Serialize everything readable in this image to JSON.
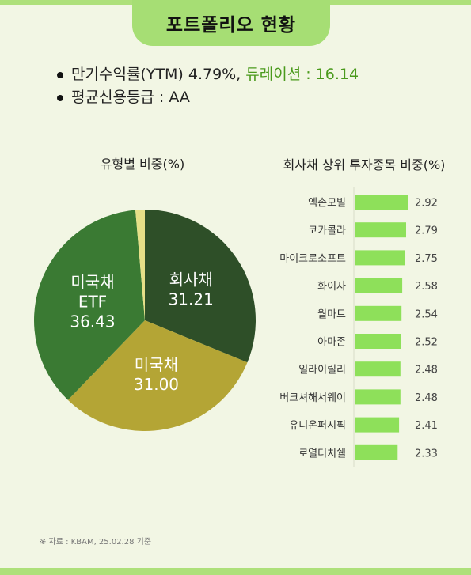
{
  "header": {
    "title": "포트폴리오 현황"
  },
  "summary": {
    "line1_main": "만기수익률(YTM) 4.79%,",
    "line1_accent": "듀레이션 : 16.14",
    "line2": "평균신용등급 : AA"
  },
  "colors": {
    "accent": "#a6de74",
    "bar": "#8ee05a",
    "highlight": "#4a9a1c"
  },
  "chart_data": [
    {
      "type": "pie",
      "title": "유형별 비중(%)",
      "slices": [
        {
          "name": "회사채",
          "value": 31.21,
          "color": "#2e4f28",
          "label_color": "#ffffff"
        },
        {
          "name": "미국채",
          "value": 31.0,
          "color": "#b4a535",
          "label_color": "#ffffff"
        },
        {
          "name": "미국채 ETF",
          "label_lines": [
            "미국채",
            "ETF"
          ],
          "value": 36.43,
          "color": "#3a7a33",
          "label_color": "#ffffff"
        },
        {
          "name": "",
          "value": 1.36,
          "color": "#e6df88",
          "label_color": "#ffffff"
        }
      ]
    },
    {
      "type": "bar",
      "orientation": "horizontal",
      "title": "회사채 상위 투자종목 비중(%)",
      "categories": [
        "엑손모빌",
        "코카콜라",
        "마이크로소프트",
        "화이자",
        "월마트",
        "아마존",
        "일라이릴리",
        "버크셔해서웨이",
        "유니온퍼시픽",
        "로열더치쉘"
      ],
      "values": [
        2.92,
        2.79,
        2.75,
        2.58,
        2.54,
        2.52,
        2.48,
        2.48,
        2.41,
        2.33
      ]
    }
  ],
  "footnote": "※ 자료 : KBAM, 25.02.28 기준"
}
